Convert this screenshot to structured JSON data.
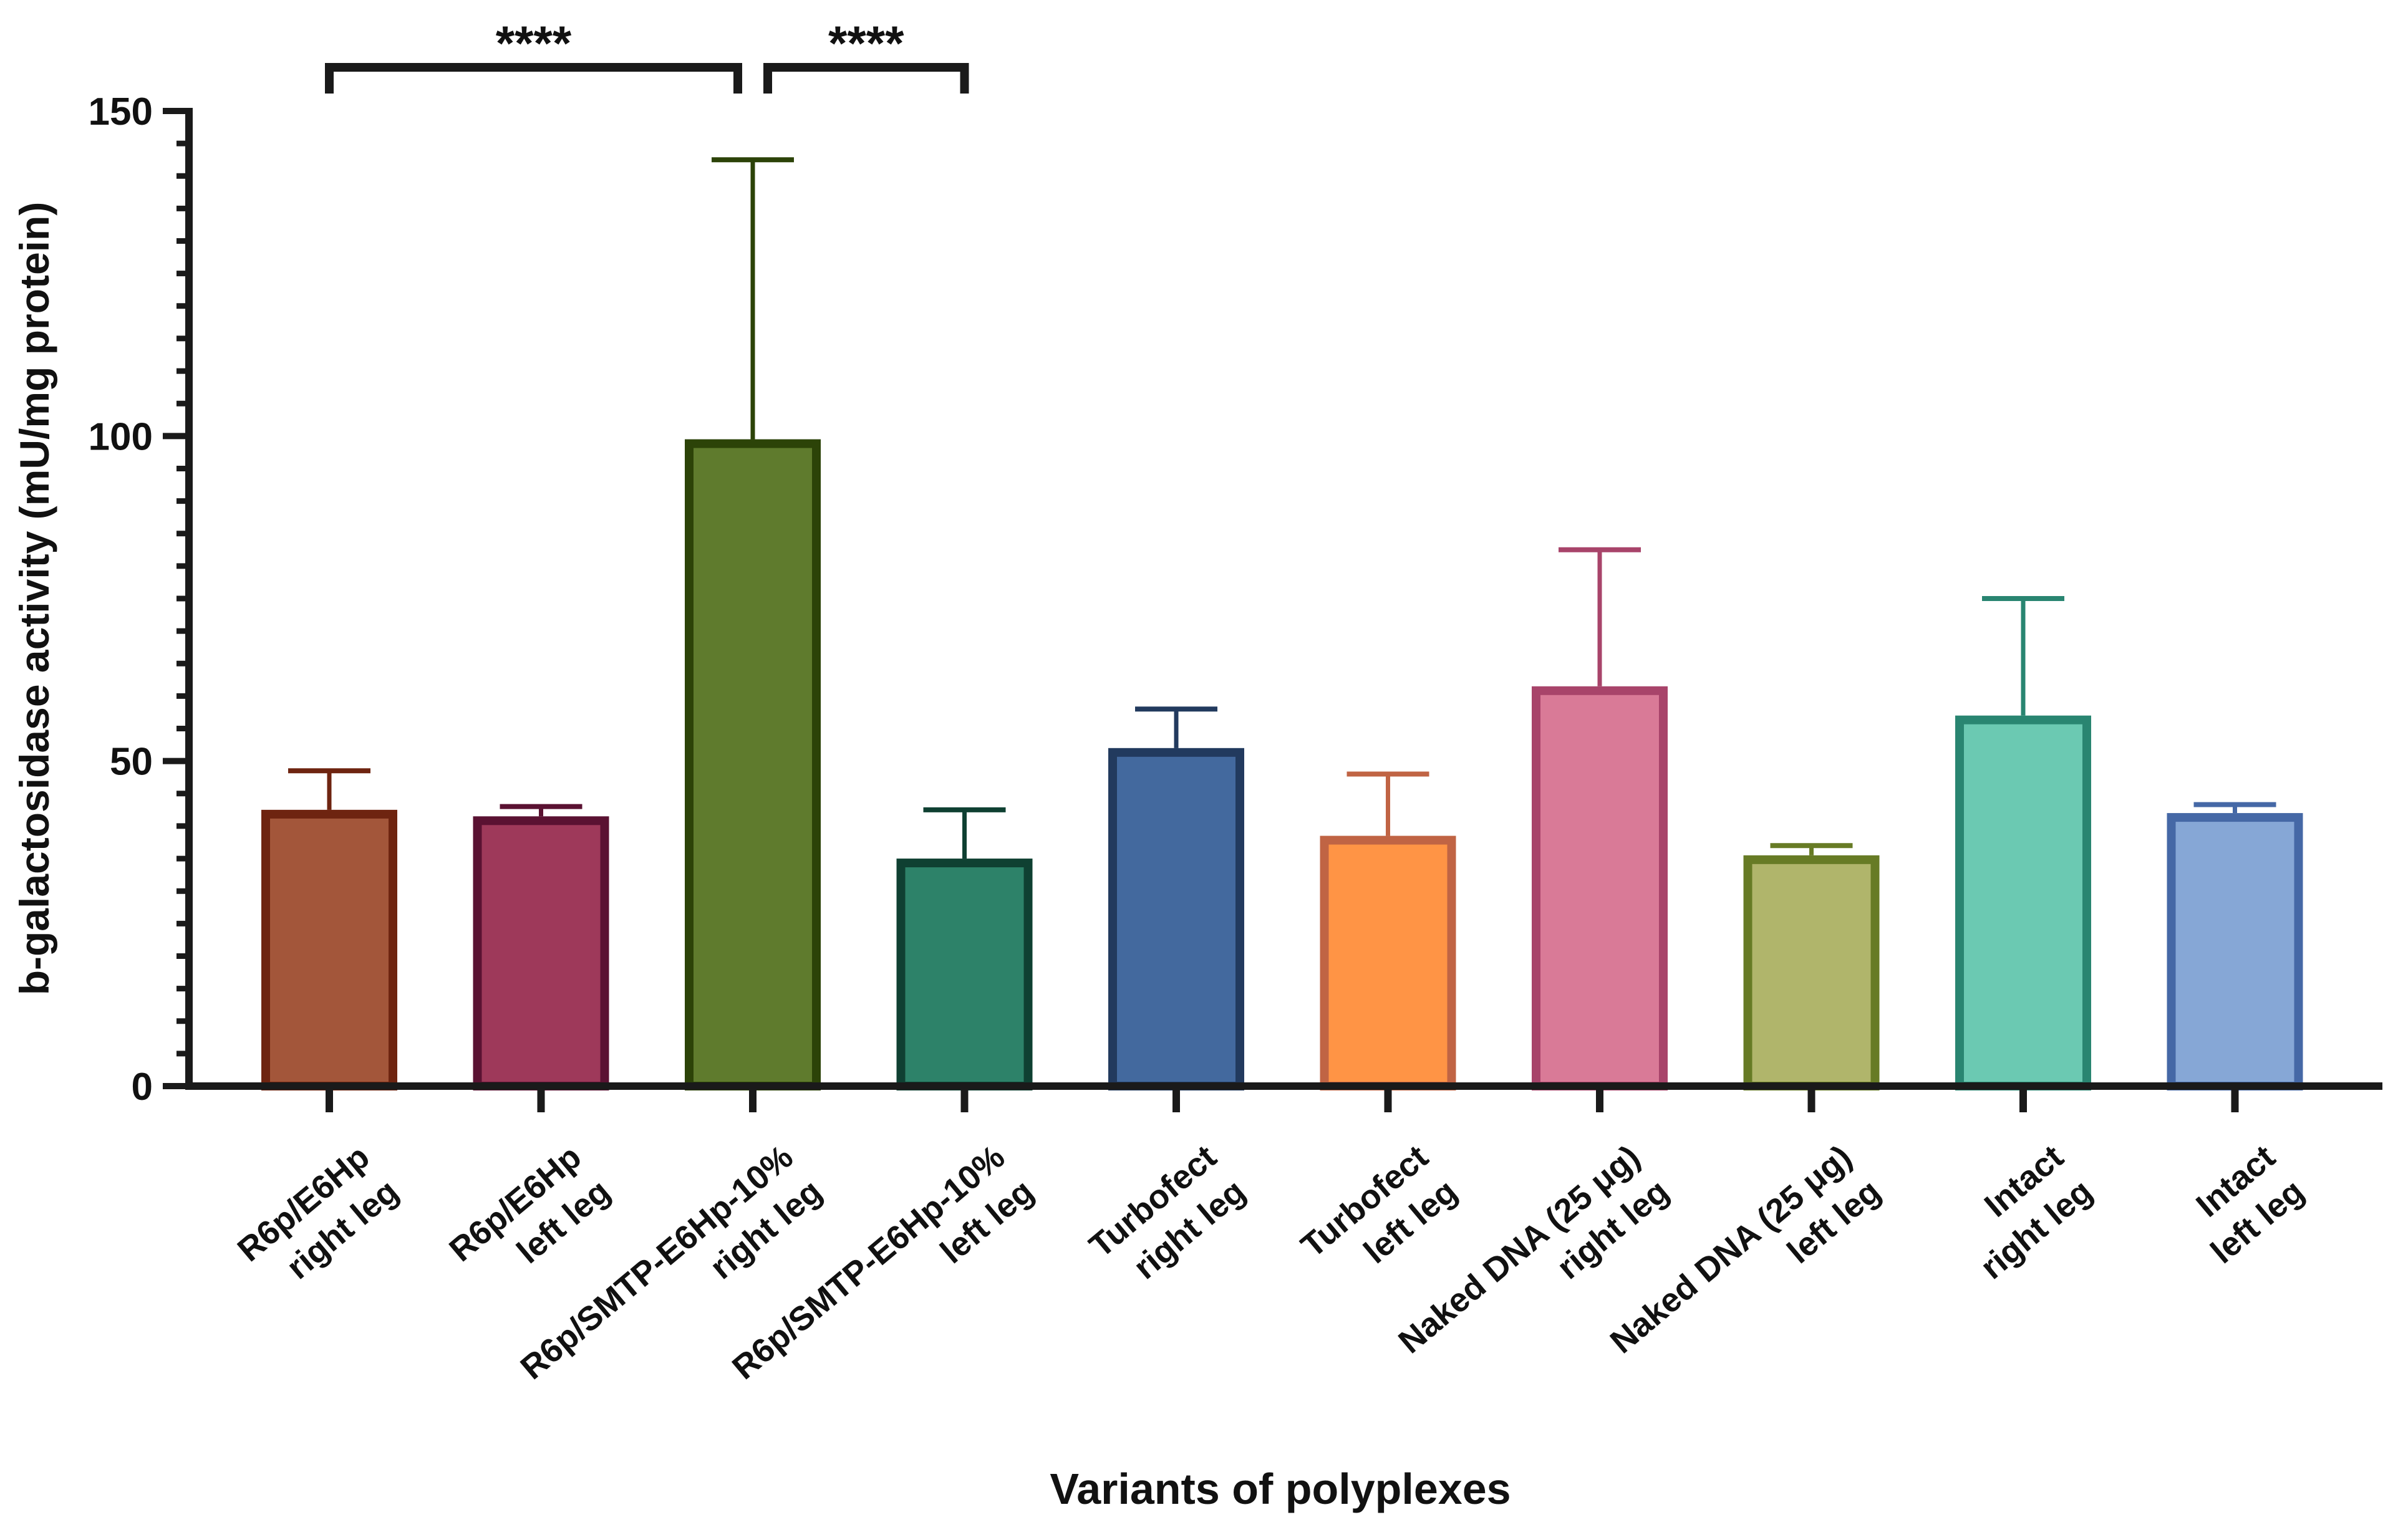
{
  "chart_data": {
    "type": "bar",
    "title": "",
    "xlabel": "Variants of polyplexes",
    "ylabel": "b-galactosidase activity (mU/mg protein)",
    "ylim": [
      0,
      150
    ],
    "yticks": [
      0,
      50,
      100,
      150
    ],
    "ytick_labels": [
      "0",
      "50",
      "100",
      "150"
    ],
    "y_minor_step": 5,
    "categories": [
      [
        "R6p/E6Hp",
        "right leg"
      ],
      [
        "R6p/E6Hp",
        "left leg"
      ],
      [
        "R6p/SMTP-E6Hp-10%",
        "right leg"
      ],
      [
        "R6p/SMTP-E6Hp-10%",
        "left leg"
      ],
      [
        "Turbofect",
        "right leg"
      ],
      [
        "Turbofect",
        "left leg"
      ],
      [
        "Naked DNA (25 μg)",
        "right leg"
      ],
      [
        "Naked DNA (25 μg)",
        "left leg"
      ],
      [
        "Intact",
        "right leg"
      ],
      [
        "Intact",
        "left leg"
      ]
    ],
    "values": [
      42.5,
      41.5,
      99.5,
      35,
      52,
      38.5,
      61.5,
      35.5,
      57,
      42
    ],
    "errors": [
      6,
      1.5,
      43,
      7.5,
      6,
      9.5,
      21,
      1.5,
      18,
      1.3
    ],
    "fill_colors": [
      "#a3563a",
      "#9e395a",
      "#5f7b2d",
      "#2d8269",
      "#43699e",
      "#ff9445",
      "#d97a97",
      "#b0b56b",
      "#6bc9b2",
      "#86a7d6"
    ],
    "edge_colors": [
      "#6e2410",
      "#5a1232",
      "#2c4308",
      "#0f4032",
      "#223a5e",
      "#c06444",
      "#a8446a",
      "#677b25",
      "#298571",
      "#4568a6"
    ],
    "significance": [
      {
        "from": 0,
        "to": 2,
        "label": "****"
      },
      {
        "from": 2,
        "to": 3,
        "label": "****"
      }
    ]
  }
}
